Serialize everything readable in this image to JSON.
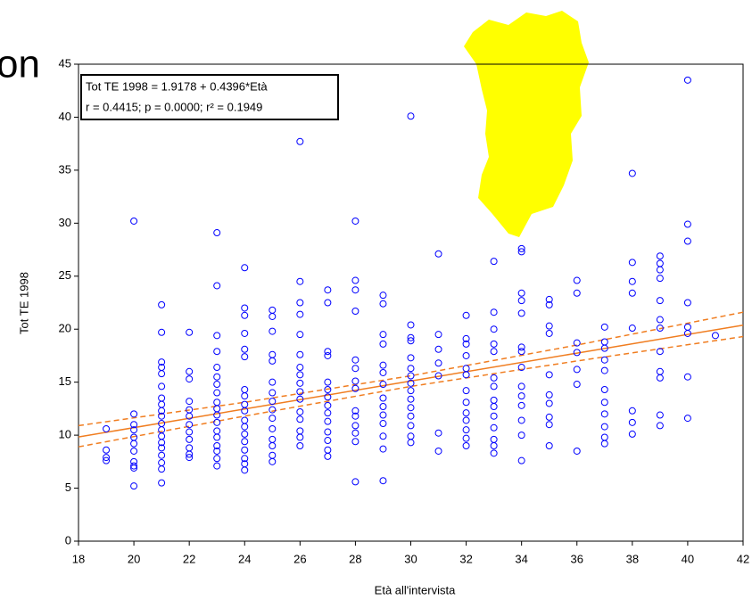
{
  "chart_data": {
    "type": "scatter",
    "title": "on",
    "x_label": "Età all'intervista",
    "y_label": "Tot TE 1998",
    "annotations": [
      "Tot TE 1998 = 1.9178 + 0.4396*Età",
      "r = 0.4415; p = 0.0000; r² = 0.1949"
    ],
    "xlim": [
      18,
      42
    ],
    "ylim": [
      0,
      45
    ],
    "xticks": [
      18,
      20,
      22,
      24,
      26,
      28,
      30,
      32,
      34,
      36,
      38,
      40,
      42
    ],
    "yticks": [
      0,
      5,
      10,
      15,
      20,
      25,
      30,
      35,
      40,
      45
    ],
    "color": "#0000ff",
    "fit_color": "#f07d20",
    "groups": [
      {
        "x": 19,
        "y": [
          10.6,
          8.6,
          7.9,
          7.6
        ]
      },
      {
        "x": 20,
        "y": [
          30.2,
          12.0,
          11.0,
          10.5,
          9.8,
          9.2,
          8.5,
          7.5,
          6.9,
          5.2,
          7.1
        ]
      },
      {
        "x": 21,
        "y": [
          22.3,
          19.7,
          16.9,
          16.4,
          15.8,
          14.6,
          13.5,
          12.9,
          12.3,
          11.8,
          11.1,
          10.5,
          9.9,
          9.3,
          8.8,
          8.1,
          7.4,
          6.8,
          5.5
        ]
      },
      {
        "x": 22,
        "y": [
          19.7,
          16.0,
          15.3,
          13.2,
          12.4,
          11.8,
          11.0,
          10.3,
          9.6,
          8.8,
          8.2,
          7.9
        ]
      },
      {
        "x": 23,
        "y": [
          29.1,
          24.1,
          19.4,
          17.9,
          16.4,
          15.5,
          14.8,
          14.0,
          13.1,
          12.5,
          11.9,
          11.2,
          10.4,
          9.8,
          9.0,
          8.5,
          7.8,
          7.1
        ]
      },
      {
        "x": 24,
        "y": [
          25.8,
          22.0,
          21.3,
          19.6,
          18.1,
          17.4,
          14.3,
          13.7,
          12.9,
          12.3,
          11.4,
          10.8,
          10.1,
          9.4,
          8.6,
          7.8,
          7.3,
          6.7
        ]
      },
      {
        "x": 25,
        "y": [
          21.8,
          21.2,
          19.8,
          17.6,
          17.0,
          15.0,
          14.0,
          13.2,
          12.4,
          11.6,
          10.6,
          9.6,
          9.0,
          8.1,
          7.5
        ]
      },
      {
        "x": 26,
        "y": [
          37.7,
          24.5,
          22.5,
          21.4,
          19.5,
          17.6,
          16.4,
          15.7,
          14.9,
          14.1,
          13.4,
          12.2,
          11.5,
          10.4,
          9.8,
          9.0
        ]
      },
      {
        "x": 27,
        "y": [
          23.7,
          22.5,
          17.9,
          17.5,
          15.0,
          14.3,
          13.6,
          12.8,
          12.1,
          11.3,
          10.3,
          9.5,
          8.6,
          8.0
        ]
      },
      {
        "x": 28,
        "y": [
          30.2,
          24.6,
          23.7,
          21.7,
          17.1,
          16.3,
          15.1,
          14.4,
          12.3,
          11.8,
          10.9,
          10.2,
          9.4,
          5.6
        ]
      },
      {
        "x": 29,
        "y": [
          23.2,
          22.4,
          19.5,
          18.6,
          16.6,
          15.9,
          14.8,
          13.5,
          12.7,
          11.9,
          11.1,
          9.9,
          8.7,
          5.7
        ]
      },
      {
        "x": 30,
        "y": [
          40.1,
          20.4,
          19.2,
          18.9,
          17.3,
          16.3,
          15.6,
          14.9,
          14.2,
          13.4,
          12.6,
          11.8,
          10.9,
          9.9,
          9.3
        ]
      },
      {
        "x": 31,
        "y": [
          27.1,
          19.5,
          18.1,
          16.8,
          15.6,
          10.2,
          8.5
        ]
      },
      {
        "x": 32,
        "y": [
          21.3,
          19.1,
          18.6,
          17.5,
          16.3,
          15.7,
          14.2,
          13.1,
          12.1,
          11.4,
          10.5,
          9.7,
          9.0
        ]
      },
      {
        "x": 33,
        "y": [
          26.4,
          21.6,
          20.0,
          18.6,
          17.9,
          15.4,
          14.6,
          13.3,
          12.7,
          11.8,
          10.7,
          9.6,
          9.0,
          8.3
        ]
      },
      {
        "x": 34,
        "y": [
          27.6,
          27.3,
          23.4,
          22.7,
          21.5,
          18.3,
          17.9,
          16.4,
          14.6,
          13.7,
          12.8,
          11.4,
          10.0,
          7.6
        ]
      },
      {
        "x": 35,
        "y": [
          22.8,
          22.3,
          20.3,
          19.6,
          15.7,
          13.8,
          13.0,
          11.7,
          11.0,
          9.0
        ]
      },
      {
        "x": 36,
        "y": [
          24.6,
          23.4,
          18.7,
          17.8,
          16.2,
          14.8,
          8.5
        ]
      },
      {
        "x": 37,
        "y": [
          20.2,
          18.8,
          18.2,
          17.1,
          16.1,
          14.3,
          13.1,
          12.0,
          10.8,
          9.8,
          9.2
        ]
      },
      {
        "x": 38,
        "y": [
          34.7,
          26.3,
          24.5,
          23.4,
          20.1,
          12.3,
          11.2,
          10.1
        ]
      },
      {
        "x": 39,
        "y": [
          26.9,
          26.2,
          25.6,
          24.8,
          22.7,
          20.9,
          20.1,
          17.9,
          16.0,
          15.4,
          11.9,
          10.9
        ]
      },
      {
        "x": 40,
        "y": [
          43.5,
          29.9,
          28.3,
          22.5,
          20.2,
          19.6,
          15.5,
          11.6
        ]
      },
      {
        "x": 41,
        "y": [
          19.4
        ]
      }
    ],
    "fit": {
      "x": [
        18,
        24,
        30,
        36,
        42
      ],
      "y": [
        9.83,
        12.47,
        15.11,
        17.74,
        20.38
      ],
      "upper": [
        10.9,
        13.1,
        15.6,
        18.5,
        21.6
      ],
      "lower": [
        8.9,
        11.8,
        14.6,
        17.0,
        19.3
      ]
    }
  }
}
